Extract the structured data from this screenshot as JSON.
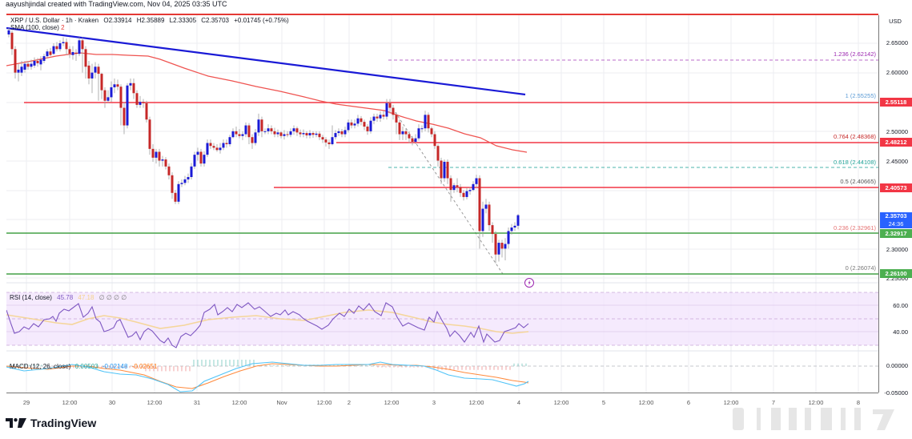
{
  "header": {
    "credit": "aayushjindal created with TradingView.com, Nov 04, 2025 03:35 UTC",
    "symbol": "XRP / U.S. Dollar · 1h · Kraken",
    "open": "O2.33914",
    "high": "H2.35889",
    "low": "L2.33305",
    "close": "C2.35703",
    "change": "+0.01745 (+0.75%)",
    "sma_label": "SMA (100, close)",
    "sma_value": "2"
  },
  "price_scale": {
    "currency": "USD",
    "ticks": [
      "2.65000",
      "2.60000",
      "2.50000",
      "2.45000",
      "2.30000",
      "2.25000"
    ],
    "tags": [
      {
        "value": "2.55118",
        "color": "#f23645"
      },
      {
        "value": "2.48212",
        "color": "#f23645"
      },
      {
        "value": "2.40573",
        "color": "#f23645"
      },
      {
        "value": "2.35703",
        "sub": "24:36",
        "color": "#2962ff"
      },
      {
        "value": "2.32917",
        "color": "#4caf50"
      },
      {
        "value": "2.26100",
        "color": "#4caf50"
      }
    ]
  },
  "fib_levels": [
    {
      "label": "1.236 (2.62142)",
      "color": "#9c27b0"
    },
    {
      "label": "1 (2.55255)",
      "color": "#5b9bd5"
    },
    {
      "label": "0.764 (2.48368)",
      "color": "#c62828"
    },
    {
      "label": "0.618 (2.44108)",
      "color": "#26a69a"
    },
    {
      "label": "0.5 (2.40665)",
      "color": "#555555"
    },
    {
      "label": "0.236 (2.32961)",
      "color": "#e57373"
    },
    {
      "label": "0 (2.26074)",
      "color": "#777777"
    }
  ],
  "rsi": {
    "label": "RSI (14, close)",
    "value": "45.78",
    "ma_value": "47.18",
    "extras": "∅ ∅ ∅ ∅",
    "ticks": [
      "60.00",
      "40.00"
    ]
  },
  "macd": {
    "label": "MACD (12, 26, close)",
    "histogram": "0.00503",
    "macd": "-0.02148",
    "signal": "-0.02651",
    "ticks": [
      "0.00000",
      "-0.05000"
    ]
  },
  "x_axis": {
    "labels": [
      "29",
      "12:00",
      "30",
      "12:00",
      "31",
      "12:00",
      "Nov",
      "12:00",
      "2",
      "12:00",
      "3",
      "12:00",
      "4",
      "12:00",
      "5",
      "12:00",
      "6",
      "12:00",
      "7",
      "12:00",
      "8"
    ]
  },
  "brand": "TradingView",
  "chart_data": {
    "type": "candlestick",
    "title": "XRP / U.S. Dollar · 1h · Kraken",
    "ylabel": "USD",
    "ylim": [
      2.245,
      2.68
    ],
    "x_ticks": [
      "29",
      "12:00",
      "30",
      "12:00",
      "31",
      "12:00",
      "Nov",
      "12:00",
      "2",
      "12:00",
      "3",
      "12:00",
      "4"
    ],
    "last": {
      "open": 2.33914,
      "high": 2.35889,
      "low": 2.33305,
      "close": 2.35703,
      "change": 0.01745,
      "change_pct": 0.75
    },
    "horizontal_levels": [
      {
        "name": "resistance",
        "value": 2.55118,
        "color": "#f23645"
      },
      {
        "name": "resistance",
        "value": 2.48212,
        "color": "#f23645"
      },
      {
        "name": "resistance",
        "value": 2.40573,
        "color": "#f23645"
      },
      {
        "name": "support",
        "value": 2.32917,
        "color": "#4caf50"
      },
      {
        "name": "support",
        "value": 2.261,
        "color": "#4caf50"
      }
    ],
    "fibonacci": [
      {
        "ratio": 1.236,
        "price": 2.62142
      },
      {
        "ratio": 1,
        "price": 2.55255
      },
      {
        "ratio": 0.764,
        "price": 2.48368
      },
      {
        "ratio": 0.618,
        "price": 2.44108
      },
      {
        "ratio": 0.5,
        "price": 2.40665
      },
      {
        "ratio": 0.236,
        "price": 2.32961
      },
      {
        "ratio": 0,
        "price": 2.26074
      }
    ],
    "trendline": {
      "color": "#1a1ad6",
      "start": {
        "x": "29 early",
        "y": 2.67
      },
      "end": {
        "x": "3 ~18:00",
        "y": 2.565
      }
    },
    "sma100": {
      "approx": [
        2.59,
        2.63,
        2.635,
        2.63,
        2.615,
        2.595,
        2.58,
        2.565,
        2.55,
        2.53,
        2.51,
        2.49,
        2.47
      ]
    },
    "closes_approx": [
      2.67,
      2.59,
      2.62,
      2.64,
      2.65,
      2.6,
      2.53,
      2.58,
      2.55,
      2.57,
      2.48,
      2.4,
      2.38,
      2.45,
      2.49,
      2.51,
      2.5,
      2.52,
      2.51,
      2.5,
      2.52,
      2.53,
      2.54,
      2.52,
      2.51,
      2.49,
      2.51,
      2.52,
      2.5,
      2.46,
      2.43,
      2.41,
      2.4,
      2.41,
      2.42,
      2.36,
      2.33,
      2.28,
      2.29,
      2.33,
      2.34,
      2.357
    ],
    "rsi_series": {
      "ylim": [
        20,
        75
      ],
      "overbought": 70,
      "oversold": 30,
      "last": 45.78
    },
    "macd_series": {
      "macd": -0.02148,
      "signal": -0.02651,
      "histogram": 0.00503
    }
  }
}
